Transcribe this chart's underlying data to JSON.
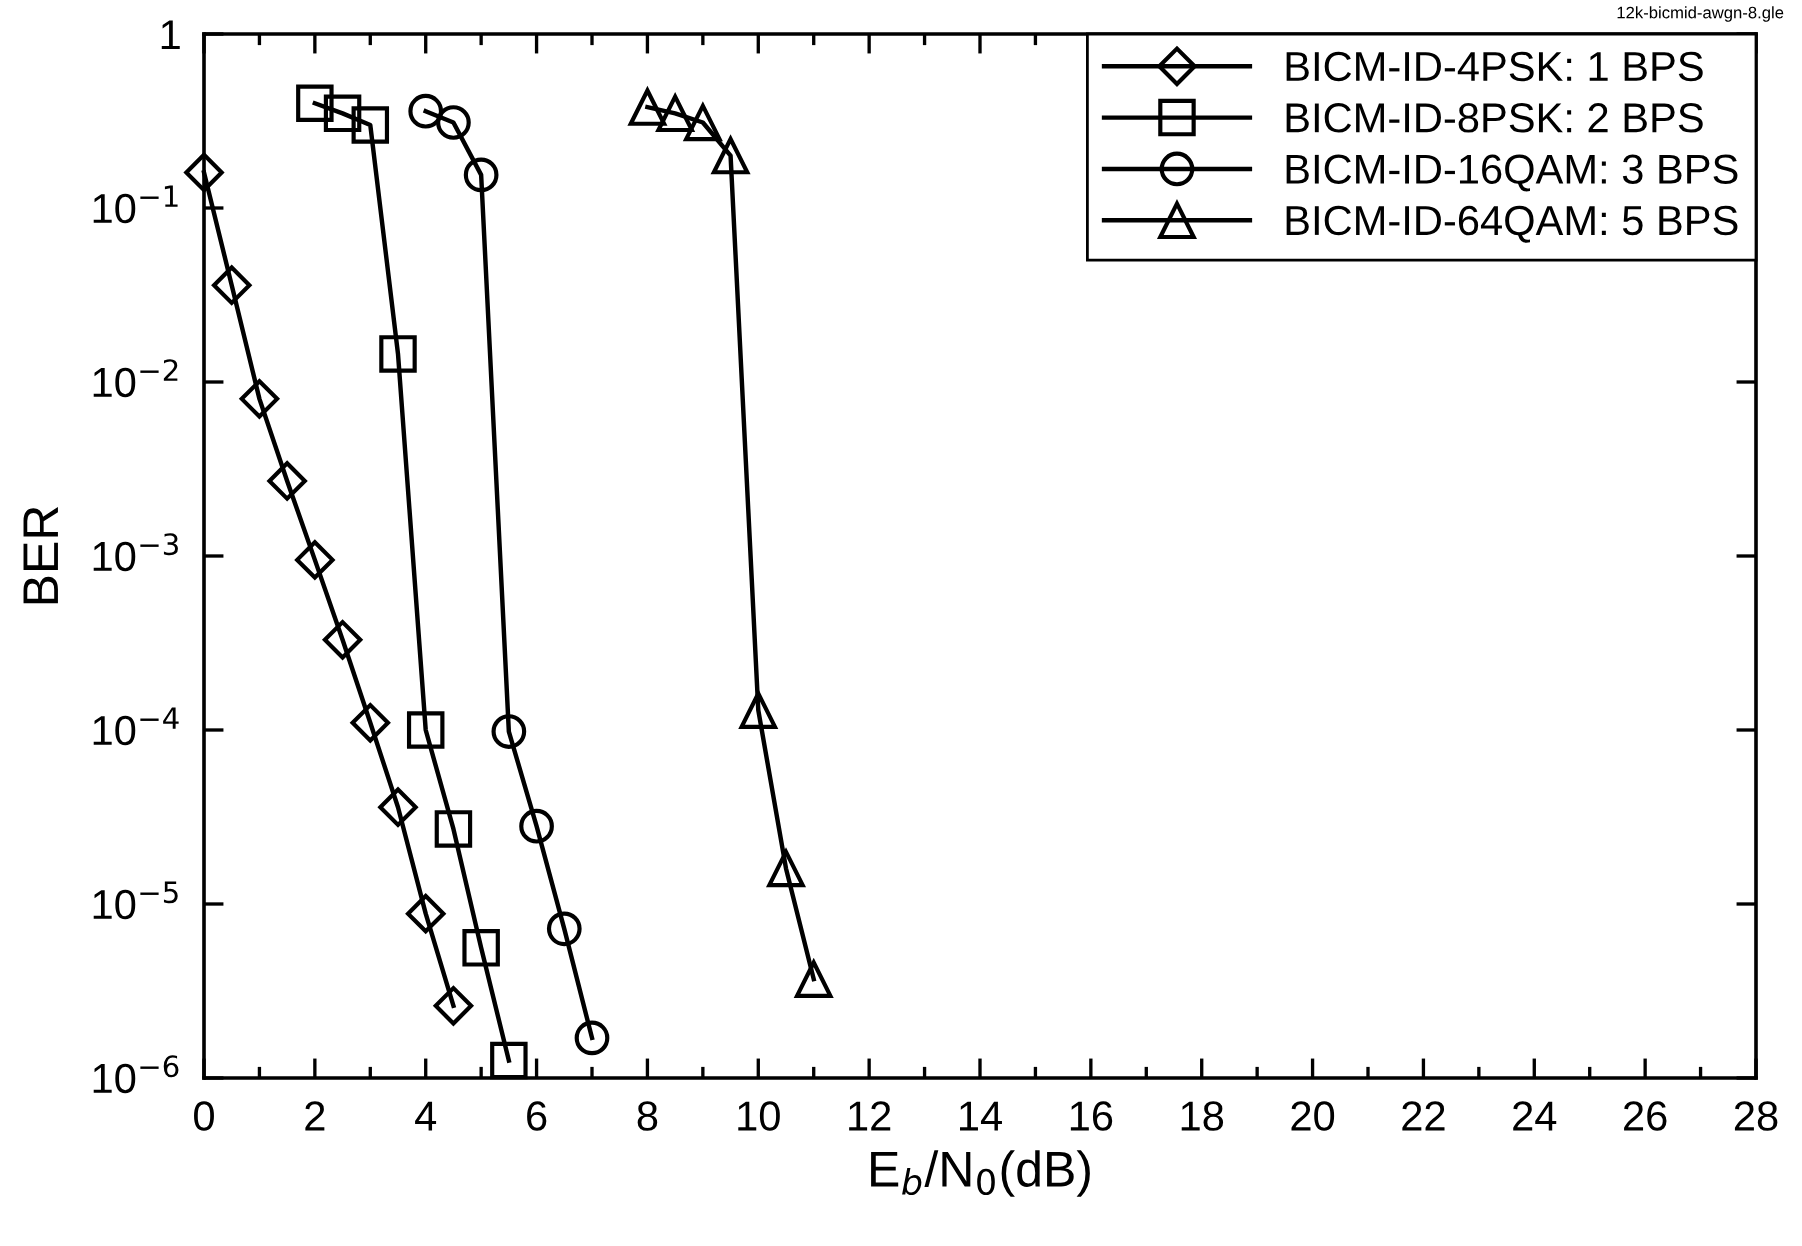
{
  "chart_data": {
    "type": "line",
    "xlabel": "E$_{b}$/N$_{0}$(dB)",
    "ylabel": "BER",
    "log": "y",
    "grid": false,
    "legend": "top right",
    "line_style": "solid",
    "annotations": [
      "12k-bicmid-awgn-8.gle"
    ],
    "xlim": [
      0,
      28
    ],
    "ylim": [
      1e-06,
      1
    ],
    "xticks": [
      0,
      {
        "value": 1,
        "label": null
      },
      2,
      {
        "value": 3,
        "label": null
      },
      4,
      {
        "value": 5,
        "label": null
      },
      6,
      {
        "value": 7,
        "label": null
      },
      8,
      {
        "value": 9,
        "label": null
      },
      10,
      {
        "value": 11,
        "label": null
      },
      12,
      {
        "value": 13,
        "label": null
      },
      14,
      {
        "value": 15,
        "label": null
      },
      16,
      {
        "value": 17,
        "label": null
      },
      18,
      {
        "value": 19,
        "label": null
      },
      20,
      {
        "value": 21,
        "label": null
      },
      22,
      {
        "value": 23,
        "label": null
      },
      24,
      {
        "value": 25,
        "label": null
      },
      26,
      {
        "value": 27,
        "label": null
      },
      28
    ],
    "yticks": [
      {
        "value": 1e-06,
        "label": "10$^{−6}$"
      },
      {
        "value": 1e-05,
        "label": "10$^{−5}$"
      },
      {
        "value": 0.0001,
        "label": "10$^{−4}$"
      },
      {
        "value": 0.001,
        "label": "10$^{−3}$"
      },
      {
        "value": 0.01,
        "label": "10$^{−2}$"
      },
      {
        "value": 0.1,
        "label": "10$^{−1}$"
      },
      1
    ],
    "series": [
      {
        "name": "BICM-ID-4PSK: 1 BPS",
        "color": "#000000",
        "marker": "diamond",
        "x": [
          0,
          0.5,
          1,
          1.5,
          2,
          2.5,
          3,
          3.5,
          4,
          4.5
        ],
        "values": [
          0.16,
          0.036,
          0.008,
          0.0027,
          0.00095,
          0.00033,
          0.00011,
          3.6e-05,
          8.8e-06,
          2.6e-06
        ]
      },
      {
        "name": "BICM-ID-8PSK: 2 BPS",
        "color": "#000000",
        "marker": "square",
        "x": [
          2,
          2.5,
          3,
          3.5,
          4,
          4.5,
          5,
          5.5
        ],
        "values": [
          0.4,
          0.35,
          0.3,
          0.0145,
          0.0001,
          2.7e-05,
          5.6e-06,
          1.26e-06
        ]
      },
      {
        "name": "BICM-ID-16QAM: 3 BPS",
        "color": "#000000",
        "marker": "circle",
        "x": [
          4,
          4.5,
          5,
          5.5,
          6,
          6.5,
          7
        ],
        "values": [
          0.36,
          0.31,
          0.155,
          9.8e-05,
          2.8e-05,
          7.2e-06,
          1.7e-06
        ]
      },
      {
        "name": "BICM-ID-64QAM: 5 BPS",
        "color": "#000000",
        "marker": "triangle",
        "x": [
          8,
          8.5,
          9,
          9.5,
          10,
          10.5,
          11
        ],
        "values": [
          0.38,
          0.35,
          0.31,
          0.2,
          0.00013,
          1.6e-05,
          3.7e-06
        ]
      }
    ]
  }
}
